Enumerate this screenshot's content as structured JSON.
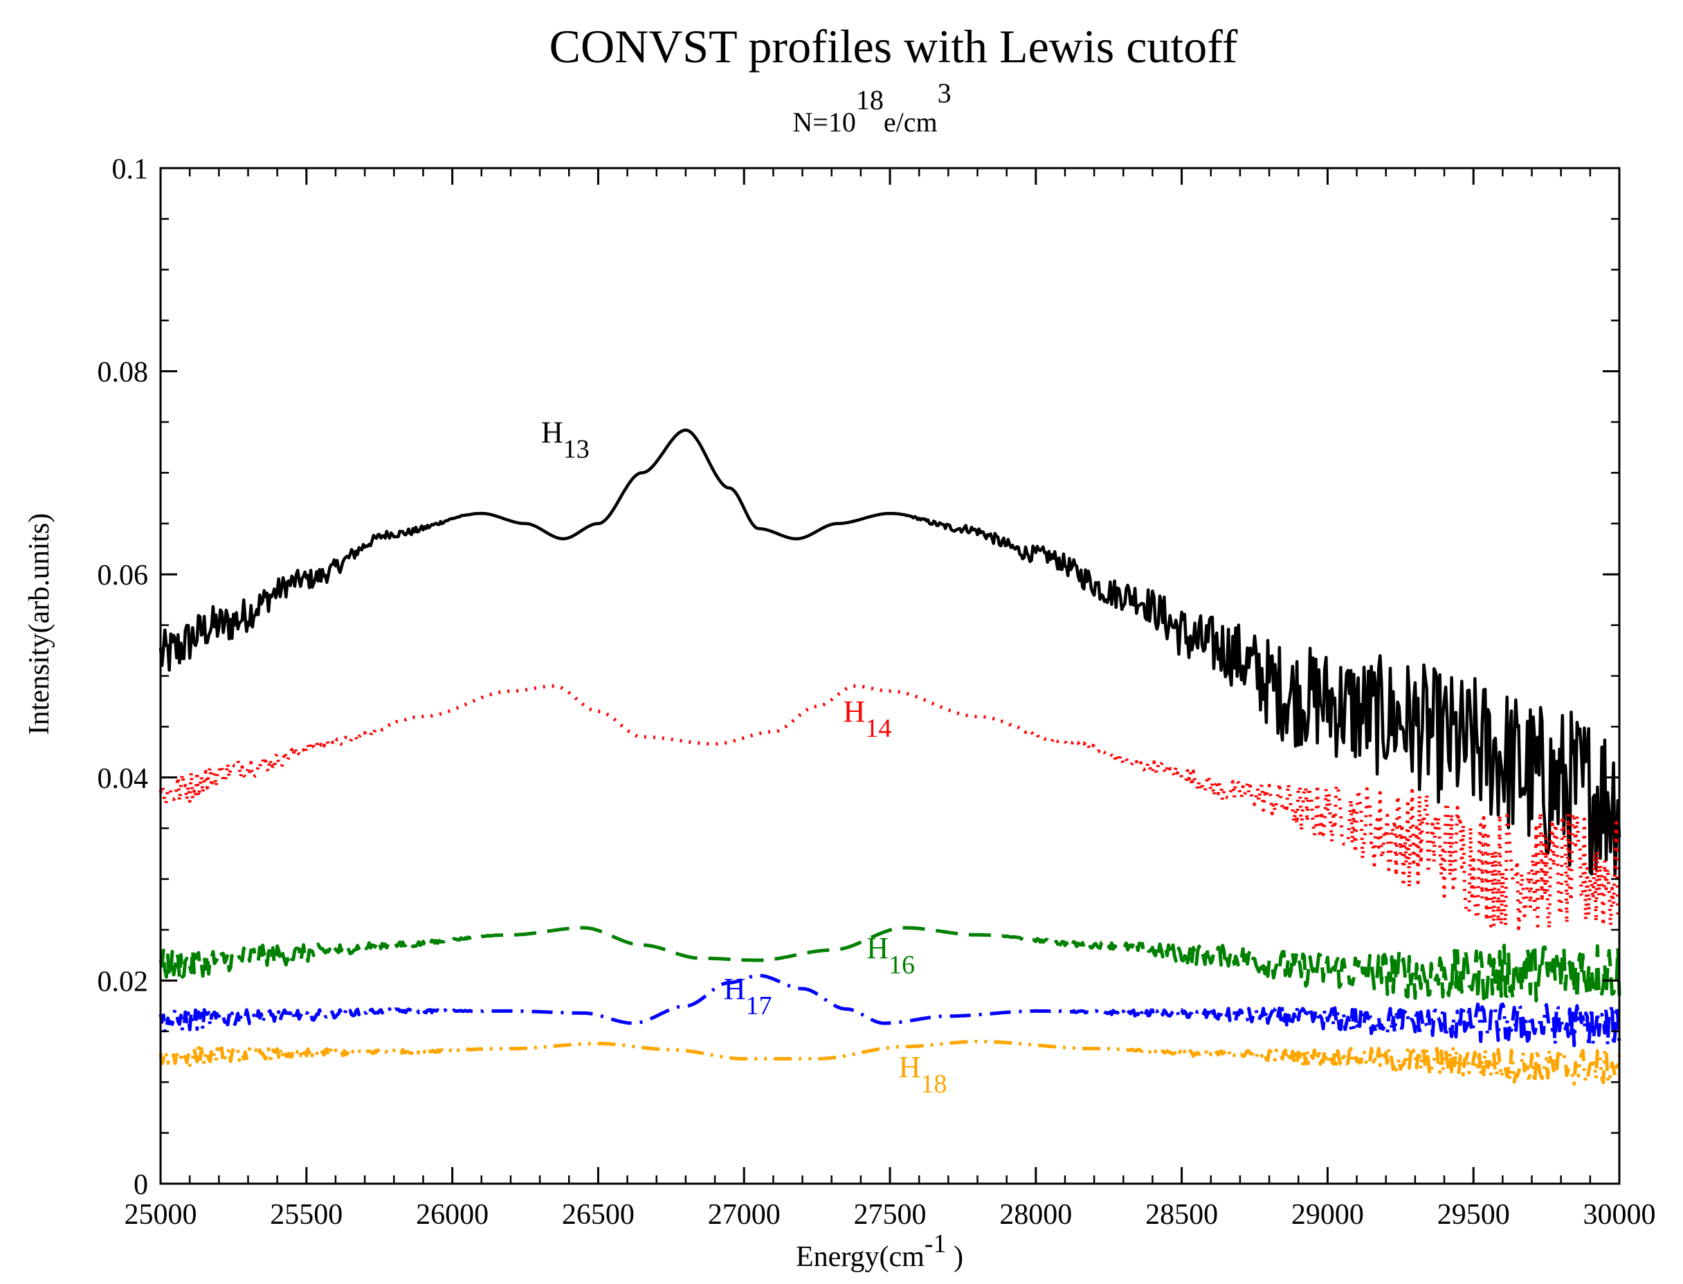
{
  "chart_data": {
    "type": "line",
    "title": "CONVST  profiles with Lewis cutoff",
    "subtitle": {
      "base": "N=10",
      "exp": "18",
      "mid": "e/cm",
      "exp2": "3"
    },
    "xlabel": {
      "base": "Energy(cm",
      "exp": "-1",
      "tail": " )"
    },
    "ylabel": "Intensity(arb.units)",
    "xlim": [
      25000,
      30000
    ],
    "ylim": [
      0,
      0.1
    ],
    "xticks": [
      25000,
      25500,
      26000,
      26500,
      27000,
      27500,
      28000,
      28500,
      29000,
      29500,
      30000
    ],
    "yticks": [
      0,
      0.02,
      0.04,
      0.06,
      0.08,
      0.1
    ],
    "xtick_labels": [
      "25000",
      "25500",
      "26000",
      "26500",
      "27000",
      "27500",
      "28000",
      "28500",
      "29000",
      "29500",
      "30000"
    ],
    "ytick_labels": [
      "0",
      "0.02",
      "0.04",
      "0.06",
      "0.08",
      "0.1"
    ],
    "grid": false,
    "series": [
      {
        "name": "H13",
        "label_base": "H",
        "label_sub": "13",
        "color": "#000000",
        "dash": "solid",
        "label_at": [
          26470,
          0.073
        ],
        "label_anchor": "end",
        "x": [
          25000,
          25200,
          25500,
          25800,
          26100,
          26250,
          26380,
          26500,
          26650,
          26800,
          26950,
          27050,
          27180,
          27320,
          27500,
          27750,
          28000,
          28300,
          28600,
          28900,
          29200,
          29500,
          29800,
          30000
        ],
        "y": [
          0.052,
          0.055,
          0.0595,
          0.064,
          0.066,
          0.065,
          0.0635,
          0.065,
          0.07,
          0.0742,
          0.0685,
          0.0645,
          0.0635,
          0.065,
          0.066,
          0.0645,
          0.062,
          0.058,
          0.053,
          0.048,
          0.046,
          0.043,
          0.039,
          0.038
        ],
        "noise": [
          0.0025,
          0.002,
          0.001,
          0.0004,
          0,
          0,
          0,
          0,
          0,
          0,
          0,
          0,
          0,
          0,
          0,
          0.0004,
          0.0008,
          0.0015,
          0.003,
          0.005,
          0.006,
          0.007,
          0.008,
          0.008
        ]
      },
      {
        "name": "H14",
        "label_base": "H",
        "label_sub": "14",
        "color": "#ff0000",
        "dash": "dotted",
        "label_at": [
          27340,
          0.0455
        ],
        "label_anchor": "start",
        "x": [
          25000,
          25300,
          25600,
          25900,
          26200,
          26350,
          26500,
          26650,
          26900,
          27100,
          27250,
          27380,
          27500,
          27800,
          28100,
          28400,
          28700,
          29000,
          29300,
          29600,
          29900,
          30000
        ],
        "y": [
          0.0385,
          0.041,
          0.0435,
          0.046,
          0.0485,
          0.049,
          0.0465,
          0.044,
          0.0433,
          0.0445,
          0.047,
          0.049,
          0.0485,
          0.046,
          0.0435,
          0.041,
          0.0385,
          0.0365,
          0.034,
          0.031,
          0.0305,
          0.03
        ],
        "noise": [
          0.0018,
          0.001,
          0.0004,
          0,
          0,
          0,
          0,
          0,
          0,
          0,
          0,
          0,
          0,
          0,
          0.0002,
          0.0006,
          0.0012,
          0.003,
          0.005,
          0.006,
          0.006,
          0.006
        ]
      },
      {
        "name": "H16",
        "label_base": "H",
        "label_sub": "16",
        "color": "#008000",
        "dash": "dashed",
        "label_at": [
          27420,
          0.0222
        ],
        "label_anchor": "start",
        "x": [
          25000,
          25400,
          25800,
          26200,
          26450,
          26650,
          26850,
          27050,
          27300,
          27550,
          27800,
          28200,
          28600,
          29000,
          29400,
          29800,
          30000
        ],
        "y": [
          0.0215,
          0.0225,
          0.0235,
          0.0245,
          0.0252,
          0.0235,
          0.0222,
          0.022,
          0.023,
          0.0252,
          0.0245,
          0.0235,
          0.0225,
          0.021,
          0.0205,
          0.021,
          0.021
        ],
        "noise": [
          0.0015,
          0.001,
          0.0003,
          0,
          0,
          0,
          0,
          0,
          0,
          0,
          0,
          0.0003,
          0.001,
          0.0018,
          0.0025,
          0.003,
          0.003
        ]
      },
      {
        "name": "H17",
        "label_base": "H",
        "label_sub": "17",
        "color": "#0000ff",
        "dash": "dashdot",
        "label_at": [
          26930,
          0.0182
        ],
        "label_anchor": "start",
        "x": [
          25000,
          25400,
          25800,
          26200,
          26450,
          26620,
          26800,
          26950,
          27050,
          27200,
          27350,
          27480,
          27700,
          28000,
          28400,
          28800,
          29200,
          29600,
          30000
        ],
        "y": [
          0.016,
          0.0165,
          0.017,
          0.017,
          0.0168,
          0.0158,
          0.0175,
          0.0198,
          0.0205,
          0.0192,
          0.0172,
          0.0158,
          0.0165,
          0.017,
          0.0168,
          0.0165,
          0.016,
          0.0158,
          0.0155
        ],
        "noise": [
          0.0012,
          0.0006,
          0.0002,
          0,
          0,
          0,
          0,
          0,
          0,
          0,
          0,
          0,
          0,
          0,
          0.0003,
          0.0008,
          0.0014,
          0.002,
          0.0022
        ]
      },
      {
        "name": "H18",
        "label_base": "H",
        "label_sub": "18",
        "color": "#ffa500",
        "dash": "dashdotdot",
        "label_at": [
          27530,
          0.0105
        ],
        "label_anchor": "start",
        "x": [
          25000,
          25400,
          25800,
          26200,
          26500,
          26750,
          27000,
          27250,
          27550,
          27800,
          28200,
          28600,
          29000,
          29400,
          29800,
          30000
        ],
        "y": [
          0.0125,
          0.0128,
          0.013,
          0.0133,
          0.0138,
          0.0132,
          0.0123,
          0.0123,
          0.0135,
          0.014,
          0.0133,
          0.0128,
          0.0125,
          0.012,
          0.0115,
          0.0115
        ],
        "noise": [
          0.001,
          0.0005,
          0.0002,
          0,
          0,
          0,
          0,
          0,
          0,
          0,
          0,
          0.0003,
          0.0008,
          0.0014,
          0.0018,
          0.0018
        ]
      }
    ]
  }
}
